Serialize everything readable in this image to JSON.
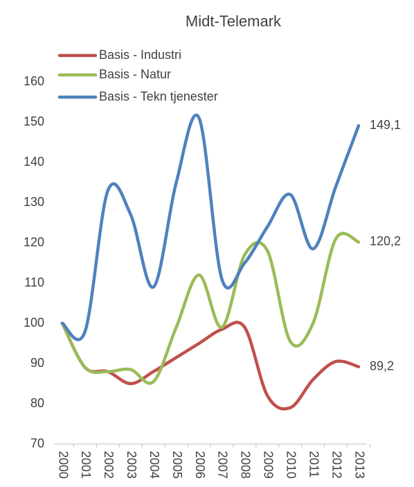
{
  "chart_data": {
    "type": "line",
    "title": "Midt-Telemark",
    "categories": [
      "2000",
      "2001",
      "2002",
      "2003",
      "2004",
      "2005",
      "2006",
      "2007",
      "2008",
      "2009",
      "2010",
      "2011",
      "2012",
      "2013"
    ],
    "series": [
      {
        "name": "Basis - Industri",
        "color": "#c0504d",
        "values": [
          100,
          89,
          88,
          85,
          88,
          91.5,
          95,
          98.5,
          99,
          82,
          79,
          86,
          90.5,
          89.2
        ],
        "value_labels": [
          null,
          null,
          null,
          null,
          null,
          null,
          null,
          null,
          null,
          null,
          null,
          null,
          null,
          "89,2"
        ]
      },
      {
        "name": "Basis - Natur",
        "color": "#9bbb59",
        "values": [
          100,
          89,
          88,
          88.5,
          85.5,
          99,
          112,
          99,
          117,
          118,
          95.5,
          100,
          121,
          120.2
        ],
        "value_labels": [
          null,
          null,
          null,
          null,
          null,
          null,
          null,
          null,
          null,
          null,
          null,
          null,
          null,
          "120,2"
        ]
      },
      {
        "name": "Basis - Tekn tjenester",
        "color": "#4f81bd",
        "values": [
          100,
          98,
          133,
          127,
          109,
          135,
          151,
          111,
          115,
          124,
          132,
          118.5,
          134,
          149.1
        ],
        "value_labels": [
          null,
          null,
          null,
          null,
          null,
          null,
          null,
          null,
          null,
          null,
          null,
          null,
          null,
          "149,1"
        ]
      }
    ],
    "ylim": [
      70,
      160
    ],
    "yticks": [
      70,
      80,
      90,
      100,
      110,
      120,
      130,
      140,
      150,
      160
    ],
    "legend": "top-left",
    "smooth": true
  }
}
